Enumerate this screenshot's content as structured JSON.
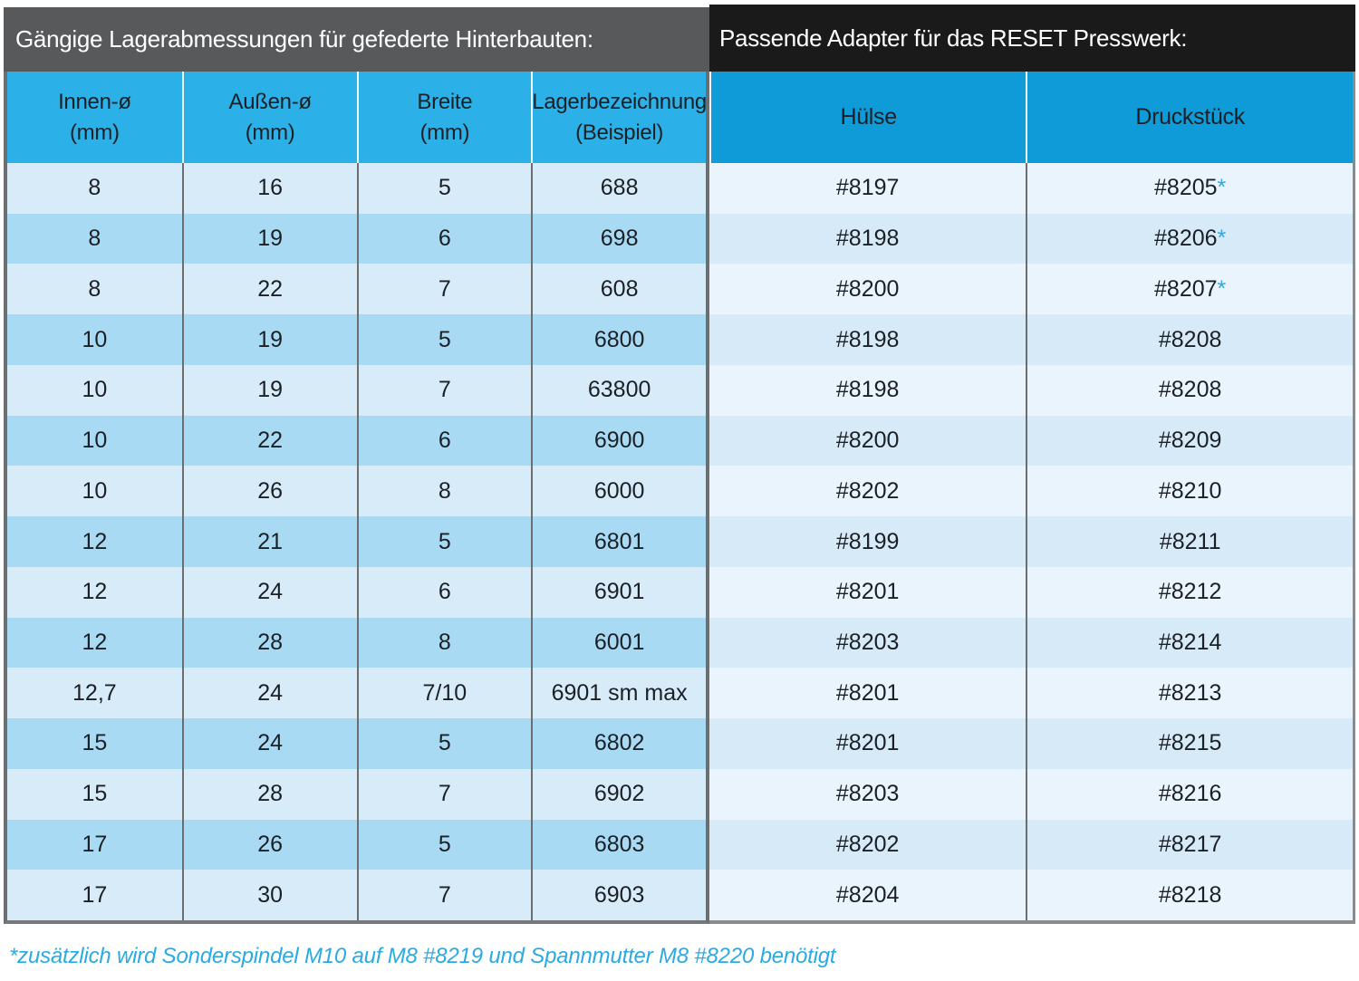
{
  "left_section": {
    "title": "Gängige Lagerabmessungen für gefederte Hinterbauten:",
    "columns": [
      {
        "label": "Innen-ø",
        "unit": "(mm)"
      },
      {
        "label": "Außen-ø",
        "unit": "(mm)"
      },
      {
        "label": "Breite",
        "unit": "(mm)"
      },
      {
        "label": "Lagerbezeichnung",
        "unit": "(Beispiel)"
      }
    ]
  },
  "right_section": {
    "title": "Passende Adapter für das RESET Presswerk:",
    "columns": [
      {
        "label": "Hülse"
      },
      {
        "label": "Druckstück"
      }
    ]
  },
  "rows": [
    {
      "innen": "8",
      "aussen": "16",
      "breite": "5",
      "lager": "688",
      "huelse": "#8197",
      "druckstueck": "#8205",
      "star": "*"
    },
    {
      "innen": "8",
      "aussen": "19",
      "breite": "6",
      "lager": "698",
      "huelse": "#8198",
      "druckstueck": "#8206",
      "star": "*"
    },
    {
      "innen": "8",
      "aussen": "22",
      "breite": "7",
      "lager": "608",
      "huelse": "#8200",
      "druckstueck": "#8207",
      "star": "*"
    },
    {
      "innen": "10",
      "aussen": "19",
      "breite": "5",
      "lager": "6800",
      "huelse": "#8198",
      "druckstueck": "#8208",
      "star": ""
    },
    {
      "innen": "10",
      "aussen": "19",
      "breite": "7",
      "lager": "63800",
      "huelse": "#8198",
      "druckstueck": "#8208",
      "star": ""
    },
    {
      "innen": "10",
      "aussen": "22",
      "breite": "6",
      "lager": "6900",
      "huelse": "#8200",
      "druckstueck": "#8209",
      "star": ""
    },
    {
      "innen": "10",
      "aussen": "26",
      "breite": "8",
      "lager": "6000",
      "huelse": "#8202",
      "druckstueck": "#8210",
      "star": ""
    },
    {
      "innen": "12",
      "aussen": "21",
      "breite": "5",
      "lager": "6801",
      "huelse": "#8199",
      "druckstueck": "#8211",
      "star": ""
    },
    {
      "innen": "12",
      "aussen": "24",
      "breite": "6",
      "lager": "6901",
      "huelse": "#8201",
      "druckstueck": "#8212",
      "star": ""
    },
    {
      "innen": "12",
      "aussen": "28",
      "breite": "8",
      "lager": "6001",
      "huelse": "#8203",
      "druckstueck": "#8214",
      "star": ""
    },
    {
      "innen": "12,7",
      "aussen": "24",
      "breite": "7/10",
      "lager": "6901 sm max",
      "huelse": "#8201",
      "druckstueck": "#8213",
      "star": ""
    },
    {
      "innen": "15",
      "aussen": "24",
      "breite": "5",
      "lager": "6802",
      "huelse": "#8201",
      "druckstueck": "#8215",
      "star": ""
    },
    {
      "innen": "15",
      "aussen": "28",
      "breite": "7",
      "lager": "6902",
      "huelse": "#8203",
      "druckstueck": "#8216",
      "star": ""
    },
    {
      "innen": "17",
      "aussen": "26",
      "breite": "5",
      "lager": "6803",
      "huelse": "#8202",
      "druckstueck": "#8217",
      "star": ""
    },
    {
      "innen": "17",
      "aussen": "30",
      "breite": "7",
      "lager": "6903",
      "huelse": "#8204",
      "druckstueck": "#8218",
      "star": ""
    }
  ],
  "footnote": "*zusätzlich wird Sonderspindel M10 auf M8 #8219 und Spannmutter M8 #8220 benötigt",
  "colors": {
    "accent_cyan": "#29abe2",
    "left_title_bg": "#58595b",
    "right_title_bg": "#1a1a1a",
    "left_header_bg": "#2bb1e7",
    "right_header_bg": "#0f9bd8",
    "left_row_odd": "#d7ebf8",
    "left_row_even": "#a9daf3",
    "right_row_odd": "#eaf4fc",
    "right_row_even": "#d7eaf7",
    "grid_line": "#6d6e70"
  }
}
